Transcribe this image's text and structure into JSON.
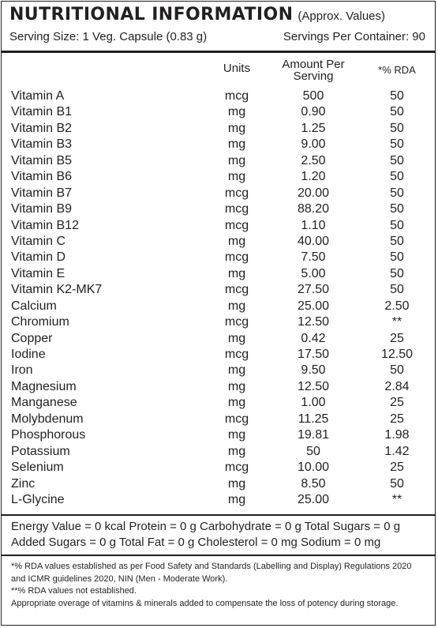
{
  "header": {
    "title": "NUTRITIONAL INFORMATION",
    "approx": "(Approx. Values)",
    "serving_size": "Serving Size: 1 Veg. Capsule (0.83 g)",
    "servings_per_container": "Servings Per Container: 90"
  },
  "columns": {
    "units": "Units",
    "amount_line1": "Amount Per",
    "amount_line2": "Serving",
    "rda": "*% RDA"
  },
  "rows": [
    {
      "name": "Vitamin A",
      "unit": "mcg",
      "amount": "500",
      "rda": "50"
    },
    {
      "name": "Vitamin B1",
      "unit": "mg",
      "amount": "0.90",
      "rda": "50"
    },
    {
      "name": "Vitamin B2",
      "unit": "mg",
      "amount": "1.25",
      "rda": "50"
    },
    {
      "name": "Vitamin B3",
      "unit": "mg",
      "amount": "9.00",
      "rda": "50"
    },
    {
      "name": "Vitamin B5",
      "unit": "mg",
      "amount": "2.50",
      "rda": "50"
    },
    {
      "name": "Vitamin B6",
      "unit": "mg",
      "amount": "1.20",
      "rda": "50"
    },
    {
      "name": "Vitamin B7",
      "unit": "mcg",
      "amount": "20.00",
      "rda": "50"
    },
    {
      "name": "Vitamin B9",
      "unit": "mcg",
      "amount": "88.20",
      "rda": "50"
    },
    {
      "name": "Vitamin B12",
      "unit": "mcg",
      "amount": "1.10",
      "rda": "50"
    },
    {
      "name": "Vitamin C",
      "unit": "mg",
      "amount": "40.00",
      "rda": "50"
    },
    {
      "name": "Vitamin D",
      "unit": "mcg",
      "amount": "7.50",
      "rda": "50"
    },
    {
      "name": "Vitamin E",
      "unit": "mg",
      "amount": "5.00",
      "rda": "50"
    },
    {
      "name": "Vitamin K2-MK7",
      "unit": "mcg",
      "amount": "27.50",
      "rda": "50"
    },
    {
      "name": "Calcium",
      "unit": "mg",
      "amount": "25.00",
      "rda": "2.50"
    },
    {
      "name": "Chromium",
      "unit": "mcg",
      "amount": "12.50",
      "rda": "**"
    },
    {
      "name": "Copper",
      "unit": "mg",
      "amount": "0.42",
      "rda": "25"
    },
    {
      "name": "Iodine",
      "unit": "mcg",
      "amount": "17.50",
      "rda": "12.50"
    },
    {
      "name": "Iron",
      "unit": "mg",
      "amount": "9.50",
      "rda": "50"
    },
    {
      "name": "Magnesium",
      "unit": "mg",
      "amount": "12.50",
      "rda": "2.84"
    },
    {
      "name": "Manganese",
      "unit": "mg",
      "amount": "1.00",
      "rda": "25"
    },
    {
      "name": "Molybdenum",
      "unit": "mcg",
      "amount": "11.25",
      "rda": "25"
    },
    {
      "name": "Phosphorous",
      "unit": "mg",
      "amount": "19.81",
      "rda": "1.98"
    },
    {
      "name": "Potassium",
      "unit": "mg",
      "amount": "50",
      "rda": "1.42"
    },
    {
      "name": "Selenium",
      "unit": "mcg",
      "amount": "10.00",
      "rda": "25"
    },
    {
      "name": "Zinc",
      "unit": "mg",
      "amount": "8.50",
      "rda": "50"
    },
    {
      "name": "L-Glycine",
      "unit": "mg",
      "amount": "25.00",
      "rda": "**"
    }
  ],
  "energy": {
    "line1": "Energy Value = 0 kcal Protein = 0 g Carbohydrate = 0 g Total Sugars = 0 g",
    "line2": "Added Sugars = 0 g Total Fat = 0 g Cholesterol = 0 mg Sodium = 0 mg"
  },
  "footnotes": {
    "rda_note_line1": "*% RDA values established as per Food Safety and Standards (Labelling and Display) Regulations 2020",
    "rda_note_line2": "and ICMR guidelines 2020, NIN (Men - Moderate Work).",
    "not_established": "**% RDA values not established.",
    "overage": "Appropriate overage of vitamins & minerals added to compensate the loss of potency during storage."
  }
}
